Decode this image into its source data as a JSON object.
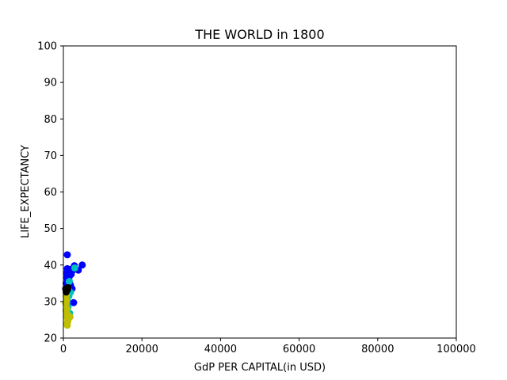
{
  "chart_data": {
    "type": "scatter",
    "title": "THE WORLD in 1800",
    "xlabel": "GdP PER CAPITAL(in USD)",
    "ylabel": "LIFE_EXPECTANCY",
    "xlim": [
      0,
      100000
    ],
    "ylim": [
      20,
      100
    ],
    "x_ticks": [
      0,
      20000,
      40000,
      60000,
      80000,
      100000
    ],
    "y_ticks": [
      20,
      30,
      40,
      50,
      60,
      70,
      80,
      90,
      100
    ],
    "grid": false,
    "series": [
      {
        "color": "#0000ff",
        "points": [
          [
            1000,
            42.8
          ],
          [
            1200,
            38.5
          ],
          [
            800,
            37.8
          ],
          [
            1500,
            38.0
          ],
          [
            900,
            36.5
          ],
          [
            1100,
            35.5
          ],
          [
            700,
            35.0
          ],
          [
            1300,
            36.8
          ],
          [
            1700,
            37.2
          ],
          [
            2000,
            37.5
          ],
          [
            2400,
            38.6
          ],
          [
            2800,
            39.8
          ],
          [
            4800,
            40.0
          ],
          [
            3800,
            38.6
          ],
          [
            1500,
            34.0
          ],
          [
            1800,
            34.5
          ],
          [
            1200,
            33.0
          ],
          [
            2200,
            33.5
          ],
          [
            2600,
            29.7
          ],
          [
            1000,
            34.0
          ],
          [
            600,
            33.5
          ],
          [
            900,
            32.5
          ],
          [
            1400,
            36.0
          ],
          [
            1600,
            35.0
          ],
          [
            2000,
            38.8
          ],
          [
            1000,
            39.0
          ],
          [
            800,
            34.8
          ],
          [
            1900,
            33.8
          ]
        ]
      },
      {
        "color": "#00bfbf",
        "points": [
          [
            2900,
            39.2
          ],
          [
            1500,
            35.5
          ],
          [
            1300,
            33.5
          ],
          [
            1800,
            32.5
          ],
          [
            1400,
            31.5
          ],
          [
            1000,
            30.5
          ],
          [
            1600,
            26.8
          ],
          [
            900,
            29.5
          ],
          [
            1200,
            28.5
          ]
        ]
      },
      {
        "color": "#bfbf00",
        "points": [
          [
            700,
            31.5
          ],
          [
            800,
            30.5
          ],
          [
            600,
            29.5
          ],
          [
            900,
            28.0
          ],
          [
            700,
            27.5
          ],
          [
            1000,
            26.5
          ],
          [
            800,
            25.8
          ],
          [
            1700,
            25.8
          ],
          [
            1200,
            25.0
          ],
          [
            1100,
            24.5
          ],
          [
            1000,
            23.5
          ],
          [
            900,
            24.0
          ],
          [
            800,
            32.0
          ],
          [
            700,
            33.0
          ]
        ]
      },
      {
        "color": "#000000",
        "points": [
          [
            600,
            33.5
          ],
          [
            900,
            33.0
          ],
          [
            1100,
            33.4
          ],
          [
            700,
            32.6
          ],
          [
            1200,
            33.8
          ]
        ]
      }
    ]
  }
}
